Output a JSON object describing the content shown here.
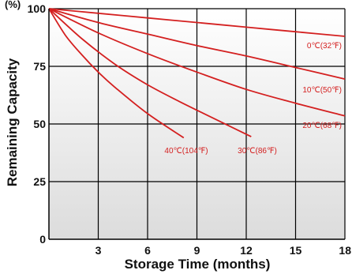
{
  "chart_data": {
    "type": "line",
    "xlabel": "Storage Time (months)",
    "ylabel": "Remaining Capacity",
    "y_unit": "(%)",
    "xlim": [
      0,
      18
    ],
    "ylim": [
      0,
      100
    ],
    "x_ticks": [
      "3",
      "6",
      "9",
      "12",
      "15",
      "18"
    ],
    "y_ticks": [
      "100",
      "75",
      "50",
      "25",
      "0"
    ],
    "x_tick_values": [
      3,
      6,
      9,
      12,
      15,
      18
    ],
    "y_tick_values": [
      100,
      75,
      50,
      25,
      0
    ],
    "grid": true,
    "line_color": "#d42020",
    "series": [
      {
        "name": "0℃(32℉)",
        "x": [
          0,
          3,
          6,
          9,
          12,
          15,
          18
        ],
        "y": [
          100,
          98,
          96,
          94,
          92,
          90,
          88
        ]
      },
      {
        "name": "10℃(50℉)",
        "x": [
          0,
          3,
          6,
          9,
          12,
          15,
          18
        ],
        "y": [
          100,
          94,
          89,
          84,
          79.5,
          74.5,
          69.5
        ]
      },
      {
        "name": "20℃(68℉)",
        "x": [
          0,
          3,
          6,
          9,
          12,
          15,
          18
        ],
        "y": [
          100,
          89.5,
          80.5,
          72.5,
          65,
          59,
          53.5
        ]
      },
      {
        "name": "30℃(86℉)",
        "x": [
          0,
          2,
          4,
          6,
          8,
          10,
          12.3
        ],
        "y": [
          100,
          87,
          76,
          67,
          59.5,
          52.5,
          44.5
        ]
      },
      {
        "name": "40℃(104℉)",
        "x": [
          0,
          1,
          2,
          3,
          4,
          6,
          8.2
        ],
        "y": [
          100,
          88.5,
          80,
          72.5,
          66,
          54.5,
          44
        ]
      }
    ]
  }
}
